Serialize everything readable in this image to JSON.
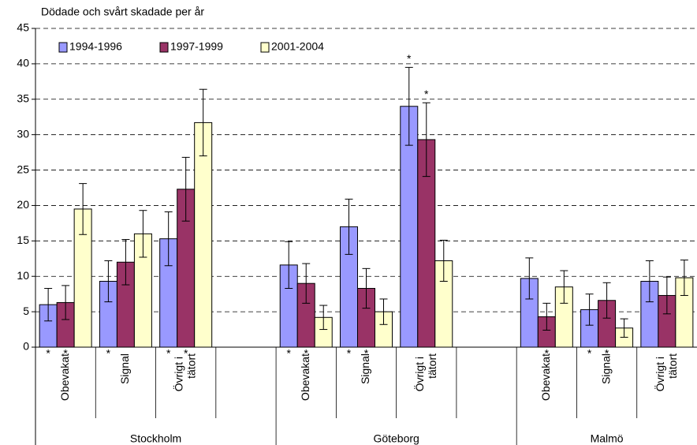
{
  "chart_data": {
    "type": "bar",
    "title": "Dödade och svårt skadade per år",
    "categories": [
      "Obevakat",
      "Signal",
      "Övrigt i tätort",
      null,
      "Obevakat",
      "Signal",
      "Övrigt i tätort",
      null,
      "Obevakat",
      "Signal",
      "Övrigt i tätort"
    ],
    "groups": [
      "Stockholm",
      "Göteborg",
      "Malmö"
    ],
    "series": [
      {
        "name": "1994-1996",
        "color": "#9999ff",
        "values": [
          6.0,
          9.3,
          15.3,
          null,
          11.6,
          17.0,
          34.0,
          null,
          9.7,
          5.3,
          9.3
        ],
        "errors": [
          2.3,
          2.9,
          3.8,
          null,
          3.3,
          3.9,
          5.5,
          null,
          2.9,
          2.2,
          2.9
        ],
        "sig_axis": [
          "*",
          "*",
          "*",
          null,
          "*",
          "*",
          null,
          null,
          null,
          "*",
          null
        ],
        "sig_top": [
          null,
          null,
          null,
          null,
          null,
          null,
          "*",
          null,
          null,
          null,
          null
        ]
      },
      {
        "name": "1997-1999",
        "color": "#993366",
        "values": [
          6.3,
          12.0,
          22.3,
          null,
          9.0,
          8.3,
          29.3,
          null,
          4.3,
          6.6,
          7.3
        ],
        "errors": [
          2.4,
          3.2,
          4.5,
          null,
          2.8,
          2.8,
          5.2,
          null,
          1.9,
          2.5,
          2.6
        ],
        "sig_axis": [
          "*",
          null,
          "*",
          null,
          "*",
          "*",
          null,
          null,
          "*",
          "*",
          null
        ],
        "sig_top": [
          null,
          null,
          null,
          null,
          null,
          null,
          "*",
          null,
          null,
          null,
          null
        ]
      },
      {
        "name": "2001-2004",
        "color": "#ffffcc",
        "values": [
          19.5,
          16.0,
          31.7,
          null,
          4.2,
          5.0,
          12.2,
          null,
          8.5,
          2.7,
          9.8
        ],
        "errors": [
          3.6,
          3.3,
          4.7,
          null,
          1.7,
          1.8,
          2.9,
          null,
          2.3,
          1.3,
          2.5
        ],
        "sig_axis": [
          null,
          null,
          null,
          null,
          null,
          null,
          null,
          null,
          null,
          null,
          null
        ],
        "sig_top": [
          null,
          null,
          null,
          null,
          null,
          null,
          null,
          null,
          null,
          null,
          null
        ]
      }
    ],
    "ylim": [
      0,
      45
    ],
    "yticks": [
      0,
      5,
      10,
      15,
      20,
      25,
      30,
      35,
      40,
      45
    ],
    "grid": true,
    "legend": "top-left"
  }
}
